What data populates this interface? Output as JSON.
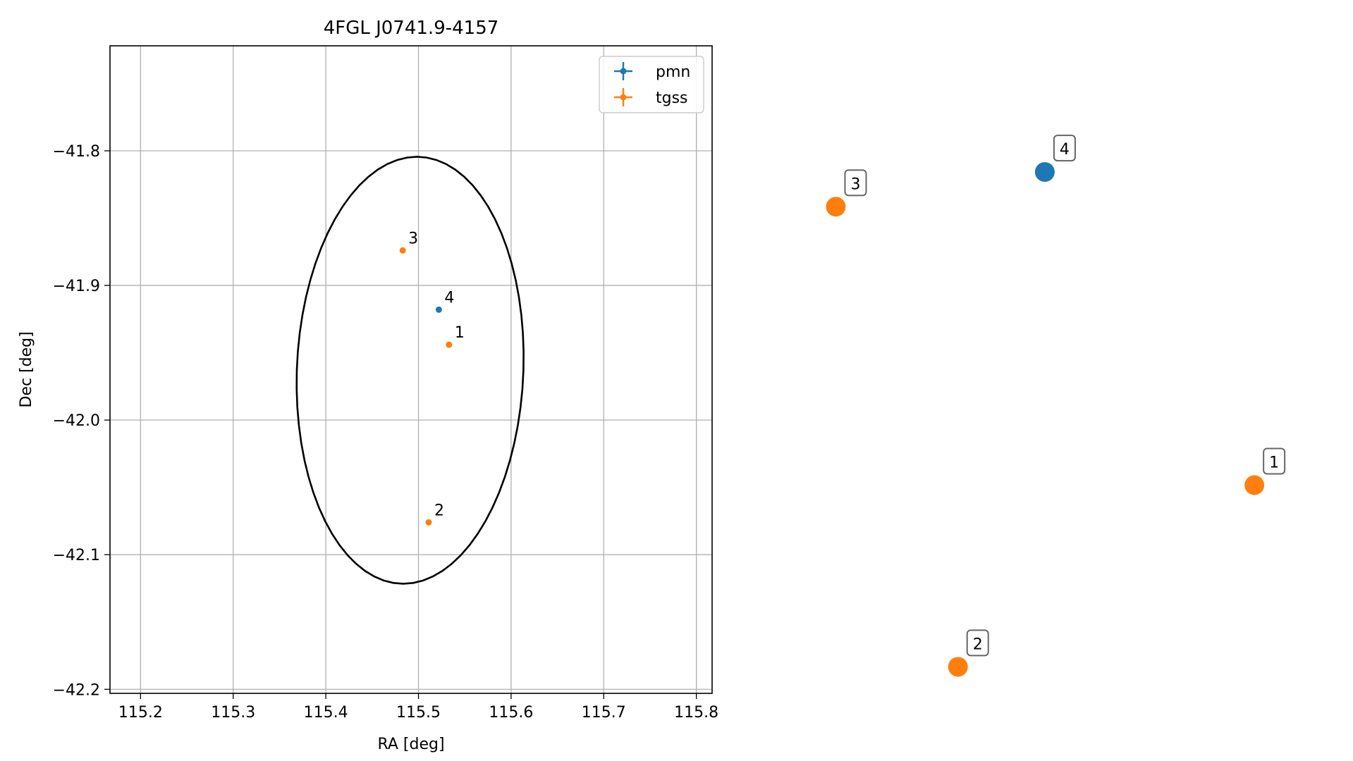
{
  "chart_data": [
    {
      "type": "scatter",
      "title": "4FGL J0741.9-4157",
      "xlabel": "RA [deg]",
      "ylabel": "Dec [deg]",
      "xlim": [
        115.167,
        115.817
      ],
      "ylim": [
        -42.203,
        -41.722
      ],
      "grid": true,
      "legend_position": "top-right",
      "xticks": [
        115.2,
        115.3,
        115.4,
        115.5,
        115.6,
        115.7,
        115.8
      ],
      "xtick_labels": [
        "115.2",
        "115.3",
        "115.4",
        "115.5",
        "115.6",
        "115.7",
        "115.8"
      ],
      "yticks": [
        -41.8,
        -41.9,
        -42.0,
        -42.1,
        -42.2
      ],
      "ytick_labels": [
        "−41.8",
        "−41.9",
        "−42.0",
        "−42.1",
        "−42.2"
      ],
      "ellipse": {
        "center_ra": 115.491,
        "center_dec": -41.963,
        "semi_major_deg": 0.159,
        "semi_minor_deg": 0.122,
        "position_angle_deg": 6.5,
        "color": "#000000"
      },
      "series": [
        {
          "name": "pmn",
          "color": "#1f77b4",
          "points": [
            {
              "label": "4",
              "x": 115.522,
              "y": -41.918
            }
          ]
        },
        {
          "name": "tgss",
          "color": "#ff7f0e",
          "points": [
            {
              "label": "1",
              "x": 115.533,
              "y": -41.944
            },
            {
              "label": "2",
              "x": 115.511,
              "y": -42.076
            },
            {
              "label": "3",
              "x": 115.483,
              "y": -41.874
            }
          ]
        }
      ]
    },
    {
      "type": "scatter",
      "axes": "off",
      "points": [
        {
          "label": "4",
          "series": "pmn",
          "x": 0.496,
          "y": 0.859
        },
        {
          "label": "3",
          "series": "tgss",
          "x": 0.111,
          "y": 0.803
        },
        {
          "label": "1",
          "series": "tgss",
          "x": 0.882,
          "y": 0.354
        },
        {
          "label": "2",
          "series": "tgss",
          "x": 0.336,
          "y": 0.061
        }
      ]
    }
  ]
}
